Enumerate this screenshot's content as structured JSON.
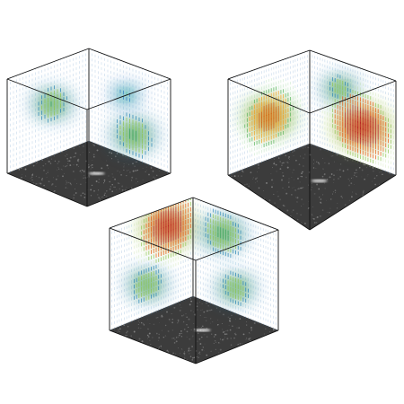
{
  "figure": {
    "background": "#ffffff",
    "frame_color": "#111111",
    "floor_color": "#3c3c3c",
    "floor_speckle_color": "#9a9a9a",
    "highlight_color": "#ffffff"
  },
  "cubes": [
    {
      "name": "top-left",
      "glyph_density": "moderate",
      "dominant_colors": [
        "#1f7fb4",
        "#2aa876",
        "#8bc34a"
      ],
      "hotspots": [
        {
          "face": "back-left",
          "u": 0.55,
          "v": 0.45,
          "strength": 0.6,
          "hue": "green"
        },
        {
          "face": "back-right",
          "u": 0.55,
          "v": 0.75,
          "strength": 0.7,
          "hue": "green"
        },
        {
          "face": "back-right",
          "u": 0.45,
          "v": 0.35,
          "strength": 0.35,
          "hue": "teal"
        }
      ]
    },
    {
      "name": "top-right",
      "glyph_density": "high",
      "dominant_colors": [
        "#1f7fb4",
        "#2aa876",
        "#d35400",
        "#b71c1c"
      ],
      "hotspots": [
        {
          "face": "back-left",
          "u": 0.5,
          "v": 0.55,
          "strength": 0.85,
          "hue": "orange"
        },
        {
          "face": "back-right",
          "u": 0.6,
          "v": 0.62,
          "strength": 1.0,
          "hue": "red"
        },
        {
          "face": "back-right",
          "u": 0.35,
          "v": 0.3,
          "strength": 0.5,
          "hue": "green"
        }
      ]
    },
    {
      "name": "bottom",
      "glyph_density": "high",
      "dominant_colors": [
        "#1f7fb4",
        "#2aa876",
        "#8bc34a",
        "#b71c1c"
      ],
      "hotspots": [
        {
          "face": "back-left",
          "u": 0.7,
          "v": 0.2,
          "strength": 0.95,
          "hue": "red"
        },
        {
          "face": "back-right",
          "u": 0.35,
          "v": 0.25,
          "strength": 0.7,
          "hue": "green"
        },
        {
          "face": "back-left",
          "u": 0.45,
          "v": 0.7,
          "strength": 0.6,
          "hue": "green"
        },
        {
          "face": "back-right",
          "u": 0.5,
          "v": 0.75,
          "strength": 0.55,
          "hue": "green"
        }
      ]
    }
  ]
}
